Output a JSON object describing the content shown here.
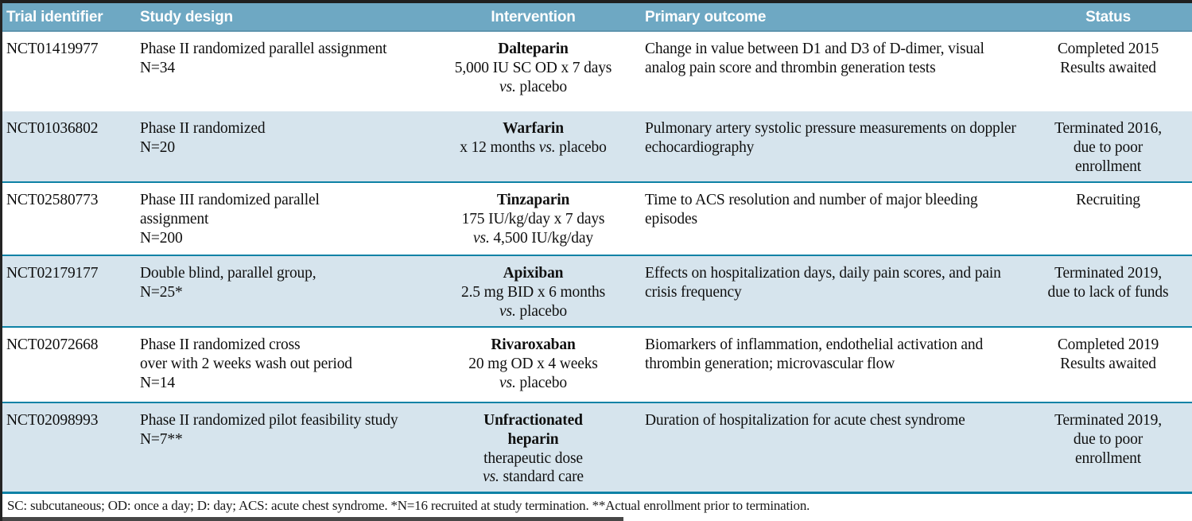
{
  "colors": {
    "header_bg": "#6ea8c3",
    "header_text": "#ffffff",
    "alt_row_bg": "#d6e4ed",
    "rule": "#0e82a6",
    "frame": "#1f1f1f",
    "body_text": "#101010"
  },
  "header": {
    "columns": [
      {
        "label": "Trial identifier",
        "align": "left"
      },
      {
        "label": "Study design",
        "align": "left"
      },
      {
        "label": "Intervention",
        "align": "center"
      },
      {
        "label": "Primary outcome",
        "align": "left"
      },
      {
        "label": "Status",
        "align": "center"
      }
    ]
  },
  "rows": [
    {
      "trial_id": "NCT01419977",
      "study_design": [
        "Phase II randomized parallel assignment",
        "N=34"
      ],
      "intervention": {
        "drug_lines": [
          "Dalteparin"
        ],
        "detail_lines": [
          [
            {
              "t": "5,000 IU SC OD x 7 days",
              "i": false
            }
          ],
          [
            {
              "t": "vs.",
              "i": true
            },
            {
              "t": " placebo",
              "i": false
            }
          ]
        ]
      },
      "primary_outcome": "Change in value between D1 and D3 of D-dimer, visual analog pain score and thrombin generation tests",
      "status_lines": [
        "Completed 2015",
        "Results awaited"
      ]
    },
    {
      "trial_id": "NCT01036802",
      "study_design": [
        "Phase II randomized",
        "N=20"
      ],
      "intervention": {
        "drug_lines": [
          "Warfarin"
        ],
        "detail_lines": [
          [
            {
              "t": "x 12 months ",
              "i": false
            },
            {
              "t": "vs.",
              "i": true
            },
            {
              "t": " placebo",
              "i": false
            }
          ]
        ]
      },
      "primary_outcome": "Pulmonary artery systolic pressure measurements on doppler echocardiography",
      "status_lines": [
        "Terminated 2016,",
        "due to poor",
        "enrollment"
      ]
    },
    {
      "trial_id": "NCT02580773",
      "study_design": [
        "Phase III randomized parallel",
        "assignment",
        "N=200"
      ],
      "intervention": {
        "drug_lines": [
          "Tinzaparin"
        ],
        "detail_lines": [
          [
            {
              "t": "175 IU/kg/day x 7 days",
              "i": false
            }
          ],
          [
            {
              "t": "vs.",
              "i": true
            },
            {
              "t": " 4,500 IU/kg/day",
              "i": false
            }
          ]
        ]
      },
      "primary_outcome": "Time to ACS resolution and number of major bleeding episodes",
      "status_lines": [
        "Recruiting"
      ]
    },
    {
      "trial_id": "NCT02179177",
      "study_design": [
        "Double blind, parallel group,",
        "N=25*"
      ],
      "intervention": {
        "drug_lines": [
          "Apixiban"
        ],
        "detail_lines": [
          [
            {
              "t": "2.5 mg BID x 6 months",
              "i": false
            }
          ],
          [
            {
              "t": "vs.",
              "i": true
            },
            {
              "t": " placebo",
              "i": false
            }
          ]
        ]
      },
      "primary_outcome": "Effects on hospitalization days, daily pain scores, and pain crisis frequency",
      "status_lines": [
        "Terminated 2019,",
        "due to lack of funds"
      ]
    },
    {
      "trial_id": "NCT02072668",
      "study_design": [
        "Phase II randomized cross",
        "over with 2 weeks wash out period",
        "N=14"
      ],
      "intervention": {
        "drug_lines": [
          "Rivaroxaban"
        ],
        "detail_lines": [
          [
            {
              "t": "20 mg OD x 4 weeks",
              "i": false
            }
          ],
          [
            {
              "t": "vs.",
              "i": true
            },
            {
              "t": " placebo",
              "i": false
            }
          ]
        ]
      },
      "primary_outcome": "Biomarkers of inflammation, endothelial activation and thrombin generation; microvascular flow",
      "status_lines": [
        "Completed 2019",
        "Results awaited"
      ]
    },
    {
      "trial_id": "NCT02098993",
      "study_design": [
        "Phase II randomized pilot feasibility study",
        "N=7**"
      ],
      "intervention": {
        "drug_lines": [
          "Unfractionated",
          "heparin"
        ],
        "detail_lines": [
          [
            {
              "t": "therapeutic dose",
              "i": false
            }
          ],
          [
            {
              "t": "vs.",
              "i": true
            },
            {
              "t": " standard care",
              "i": false
            }
          ]
        ]
      },
      "primary_outcome": "Duration of hospitalization for acute chest syndrome",
      "status_lines": [
        "Terminated 2019,",
        "due to poor",
        "enrollment"
      ]
    }
  ],
  "footnote": "SC: subcutaneous; OD: once a day; D: day; ACS: acute chest syndrome. *N=16 recruited at study termination. **Actual enrollment prior to termination."
}
